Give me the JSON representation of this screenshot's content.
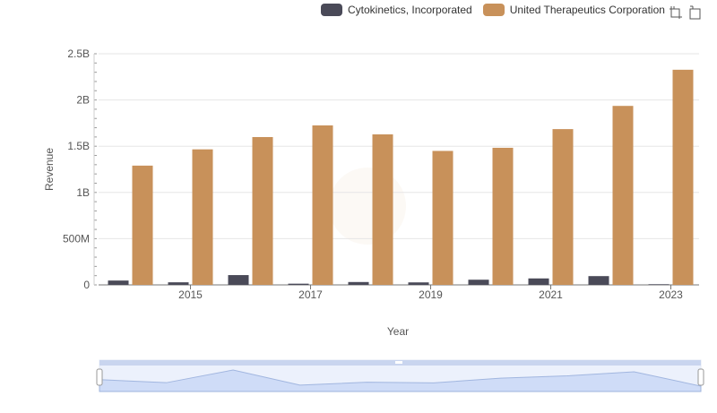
{
  "colors": {
    "series_a": "#4a4a58",
    "series_b": "#c8915a",
    "grid": "#e6e6e6",
    "axis": "#777777",
    "zoom_fill": "#dbe5fb",
    "zoom_line": "#8fa8d9",
    "zoom_border": "#c9d5ef"
  },
  "toolbar": {
    "icons": [
      "zoom-select-icon",
      "zoom-reset-icon"
    ]
  },
  "chart_data": {
    "type": "bar",
    "categories": [
      "2014",
      "2015",
      "2016",
      "2017",
      "2018",
      "2019",
      "2020",
      "2021",
      "2022",
      "2023"
    ],
    "tick_labels": [
      "2015",
      "2017",
      "2019",
      "2021",
      "2023"
    ],
    "xlabel": "Year",
    "ylabel": "Revenue",
    "ylim": [
      0,
      2500000000
    ],
    "y_ticks": [
      {
        "value": 0,
        "label": "0"
      },
      {
        "value": 500000000,
        "label": "500M"
      },
      {
        "value": 1000000000,
        "label": "1B"
      },
      {
        "value": 1500000000,
        "label": "1.5B"
      },
      {
        "value": 2000000000,
        "label": "2B"
      },
      {
        "value": 2500000000,
        "label": "2.5B"
      }
    ],
    "grid": true,
    "legend_position": "top-right",
    "series": [
      {
        "name": "Cytokinetics, Incorporated",
        "values": [
          47000000,
          28000000,
          106000000,
          13000000,
          31000000,
          27000000,
          56000000,
          70000000,
          95000000,
          7000000
        ]
      },
      {
        "name": "United Therapeutics Corporation",
        "values": [
          1290000000,
          1466000000,
          1599000000,
          1725000000,
          1628000000,
          1449000000,
          1483000000,
          1685000000,
          1936000000,
          2327000000
        ]
      }
    ]
  }
}
